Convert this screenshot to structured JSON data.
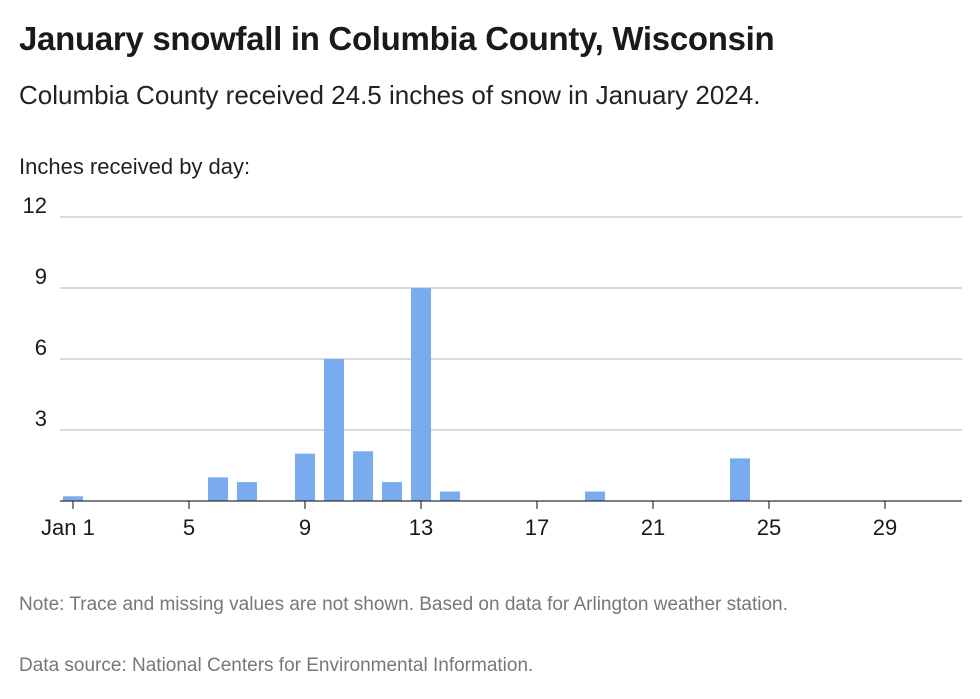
{
  "header": {
    "title": "January snowfall in Columbia County, Wisconsin",
    "subtitle": "Columbia County received 24.5 inches of snow in January 2024."
  },
  "footer": {
    "note": "Note: Trace and missing values are not shown. Based on data for Arlington weather station.",
    "source": "Data source: National Centers for Environmental Information."
  },
  "chart_data": {
    "type": "bar",
    "ylabel": "Inches received by day:",
    "xlabel": "",
    "ylim": [
      0,
      12
    ],
    "yticks": [
      "12",
      "9",
      "6",
      "3"
    ],
    "yticks_values": [
      12,
      9,
      6,
      3
    ],
    "xticks": [
      {
        "day": 1,
        "label": "Jan 1"
      },
      {
        "day": 5,
        "label": "5"
      },
      {
        "day": 9,
        "label": "9"
      },
      {
        "day": 13,
        "label": "13"
      },
      {
        "day": 17,
        "label": "17"
      },
      {
        "day": 21,
        "label": "21"
      },
      {
        "day": 25,
        "label": "25"
      },
      {
        "day": 29,
        "label": "29"
      }
    ],
    "grid": true,
    "color": "#7aabee",
    "days": [
      1,
      6,
      7,
      9,
      10,
      11,
      12,
      13,
      14,
      19,
      24
    ],
    "values": [
      0.2,
      1.0,
      0.8,
      2.0,
      6.0,
      2.1,
      0.8,
      9.0,
      0.4,
      0.4,
      1.8
    ]
  }
}
